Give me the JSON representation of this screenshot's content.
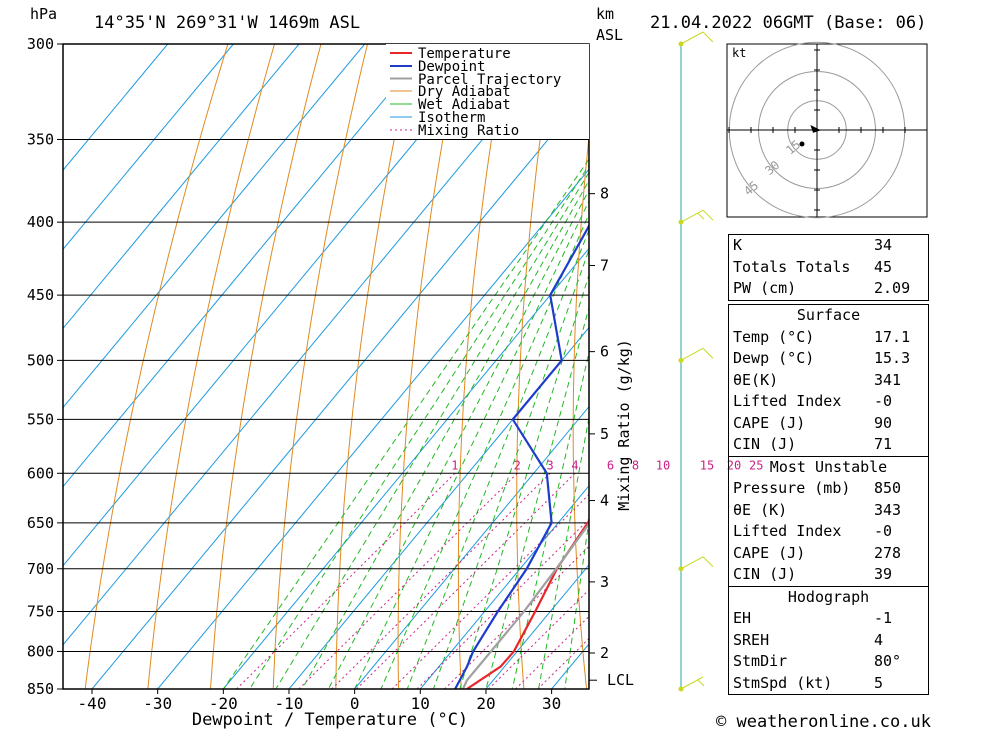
{
  "header": {
    "pressure_unit": "hPa",
    "location": "14°35'N 269°31'W 1469m ASL",
    "km_label": "km",
    "asl_label": "ASL",
    "datetime": "21.04.2022 06GMT (Base: 06)"
  },
  "credit": "© weatheronline.co.uk",
  "hodograph_unit": "kt",
  "hodograph_rings": [
    "15",
    "30",
    "45"
  ],
  "indices": [
    {
      "label": "K",
      "value": "34"
    },
    {
      "label": "Totals Totals",
      "value": "45"
    },
    {
      "label": "PW (cm)",
      "value": "2.09"
    }
  ],
  "surface": {
    "title": "Surface",
    "rows": [
      {
        "label": "Temp (°C)",
        "value": "17.1"
      },
      {
        "label": "Dewp (°C)",
        "value": "15.3"
      },
      {
        "label": "θE(K)",
        "value": "341"
      },
      {
        "label": "Lifted Index",
        "value": "-0"
      },
      {
        "label": "CAPE (J)",
        "value": "90"
      },
      {
        "label": "CIN (J)",
        "value": "71"
      }
    ]
  },
  "most_unstable": {
    "title": "Most Unstable",
    "rows": [
      {
        "label": "Pressure (mb)",
        "value": "850"
      },
      {
        "label": "θE (K)",
        "value": "343"
      },
      {
        "label": "Lifted Index",
        "value": "-0"
      },
      {
        "label": "CAPE (J)",
        "value": "278"
      },
      {
        "label": "CIN (J)",
        "value": "39"
      }
    ]
  },
  "hodograph_params": {
    "title": "Hodograph",
    "rows": [
      {
        "label": "EH",
        "value": "-1"
      },
      {
        "label": "SREH",
        "value": "4"
      },
      {
        "label": "StmDir",
        "value": "80°"
      },
      {
        "label": "StmSpd (kt)",
        "value": "5"
      }
    ]
  },
  "colors": {
    "temperature": "#e8262a",
    "dewpoint": "#1e3ccc",
    "parcel": "#a0a0a0",
    "dry_adiabat": "#e08a20",
    "wet_adiabat": "#22b822",
    "isotherm": "#1e9ae0",
    "mixing_ratio": "#cc2288",
    "wind": "#c8d820"
  },
  "chart_data": {
    "type": "line",
    "title": "Skew-T log-P sounding",
    "xlabel": "Dewpoint / Temperature (°C)",
    "ylabel": "hPa",
    "right_axis_label": "Mixing Ratio (g/kg)",
    "pressure_levels": [
      300,
      350,
      400,
      450,
      500,
      550,
      600,
      650,
      700,
      750,
      800,
      850
    ],
    "pressure_range": [
      300,
      850
    ],
    "x_ticks": [
      -40,
      -30,
      -20,
      -10,
      0,
      10,
      20,
      30
    ],
    "x_range": [
      -45,
      36
    ],
    "km_ticks": [
      {
        "km": 8,
        "p": 382
      },
      {
        "km": 7,
        "p": 429
      },
      {
        "km": 6,
        "p": 493
      },
      {
        "km": 5,
        "p": 563
      },
      {
        "km": 4,
        "p": 627
      },
      {
        "km": 3,
        "p": 715
      },
      {
        "km": 2,
        "p": 802
      }
    ],
    "lcl": {
      "label": "LCL",
      "p": 838
    },
    "mixing_ratio_labels": [
      {
        "label": "1",
        "x": -12
      },
      {
        "label": "2",
        "x": -2.5
      },
      {
        "label": "3",
        "x": 2.5
      },
      {
        "label": "4",
        "x": 6.3
      },
      {
        "label": "6",
        "x": 11.7
      },
      {
        "label": "8",
        "x": 15.5
      },
      {
        "label": "10",
        "x": 19.7
      },
      {
        "label": "15",
        "x": 26.4
      },
      {
        "label": "20",
        "x": 30.5
      },
      {
        "label": "25",
        "x": 33.9
      }
    ],
    "legend": [
      "Temperature",
      "Dewpoint",
      "Parcel Trajectory",
      "Dry Adiabat",
      "Wet Adiabat",
      "Isotherm",
      "Mixing Ratio"
    ],
    "series": [
      {
        "name": "Temperature",
        "points": [
          [
            300,
            0
          ],
          [
            350,
            5
          ],
          [
            400,
            8
          ],
          [
            450,
            10
          ],
          [
            500,
            11
          ],
          [
            550,
            13
          ],
          [
            600,
            14
          ],
          [
            650,
            14.5
          ],
          [
            700,
            15.6
          ],
          [
            750,
            17.7
          ],
          [
            800,
            19.5
          ],
          [
            820,
            19.4
          ],
          [
            850,
            17.1
          ]
        ]
      },
      {
        "name": "Dewpoint",
        "points": [
          [
            300,
            -20
          ],
          [
            350,
            -24
          ],
          [
            400,
            -23
          ],
          [
            450,
            -20
          ],
          [
            500,
            -10
          ],
          [
            550,
            -10
          ],
          [
            600,
            2
          ],
          [
            650,
            9
          ],
          [
            700,
            11
          ],
          [
            750,
            12
          ],
          [
            800,
            13.3
          ],
          [
            820,
            14.3
          ],
          [
            850,
            15.3
          ]
        ]
      },
      {
        "name": "Parcel Trajectory",
        "points": [
          [
            300,
            2
          ],
          [
            350,
            5
          ],
          [
            400,
            8
          ],
          [
            450,
            10
          ],
          [
            500,
            11
          ],
          [
            550,
            12
          ],
          [
            600,
            13.7
          ],
          [
            650,
            14.8
          ],
          [
            700,
            15.5
          ],
          [
            750,
            16
          ],
          [
            800,
            16
          ],
          [
            838,
            16
          ],
          [
            850,
            16.5
          ]
        ]
      }
    ],
    "wind_barbs": [
      {
        "p": 300,
        "speed_kt": 10
      },
      {
        "p": 400,
        "speed_kt": 15
      },
      {
        "p": 500,
        "speed_kt": 10
      },
      {
        "p": 700,
        "speed_kt": 10
      },
      {
        "p": 850,
        "speed_kt": 5
      }
    ],
    "hodograph": {
      "max_kt": 45
    }
  }
}
